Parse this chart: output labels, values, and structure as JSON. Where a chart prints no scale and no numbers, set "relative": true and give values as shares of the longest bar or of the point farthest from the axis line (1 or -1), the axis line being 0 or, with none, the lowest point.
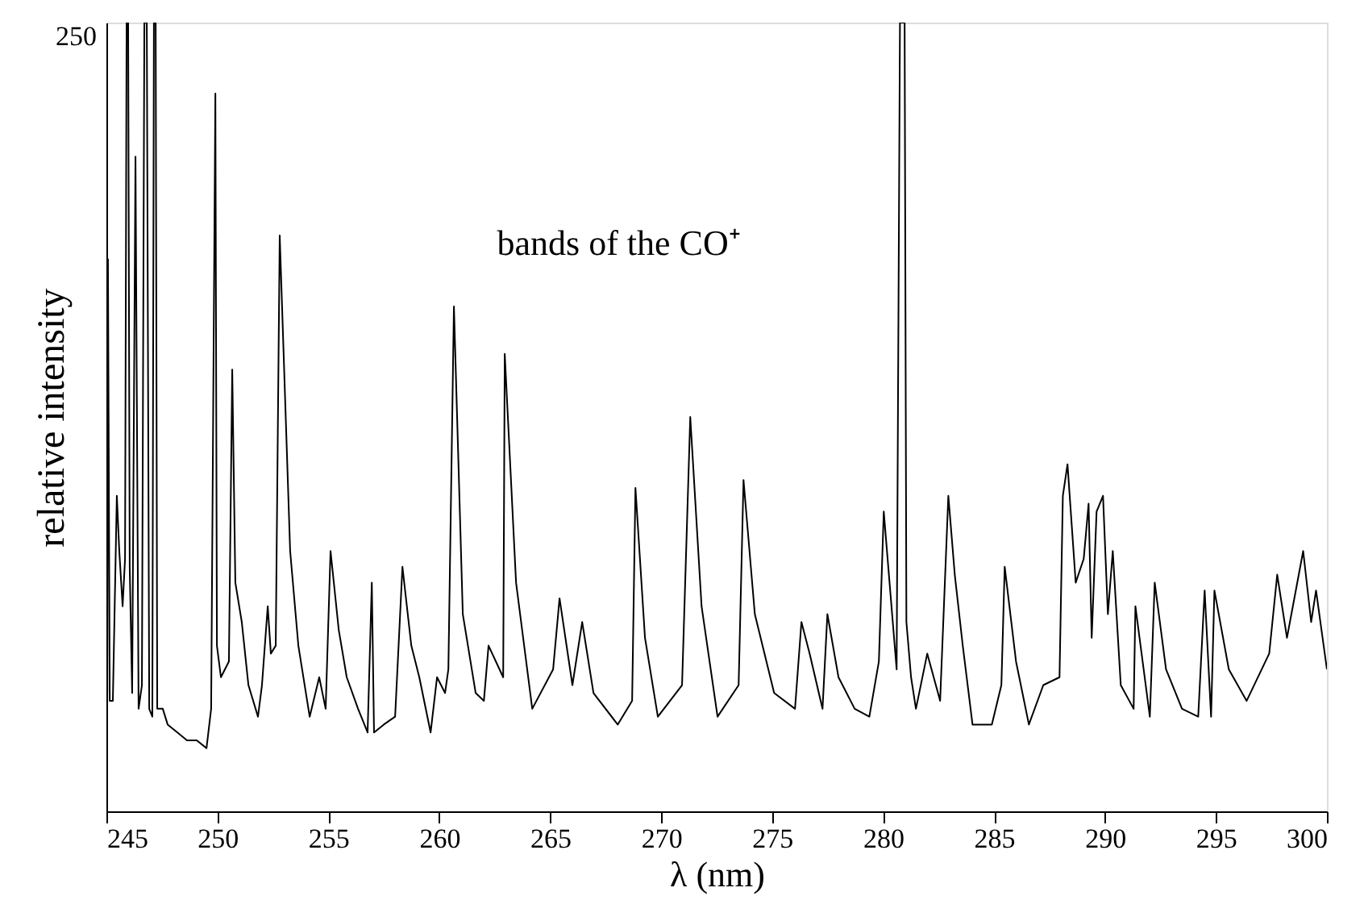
{
  "chart_data": {
    "type": "line",
    "relative": true,
    "xlabel": "λ (nm)",
    "ylabel": "relative intensity",
    "annotations": [
      "bands of the CO⁺",
      "250"
    ],
    "xlim": [
      245,
      300
    ],
    "xticks": [
      245,
      250,
      255,
      260,
      265,
      270,
      275,
      280,
      285,
      290,
      295,
      300
    ],
    "grid": false,
    "marker": "none",
    "line_style": "solid",
    "series": [
      {
        "color": "#000000",
        "x": [
          245.04,
          245.07,
          245.15,
          245.29,
          245.47,
          245.58,
          245.73,
          245.84,
          245.91,
          245.98,
          246.05,
          246.16,
          246.31,
          246.45,
          246.6,
          246.71,
          246.82,
          246.93,
          247.07,
          247.14,
          247.22,
          247.29,
          247.54,
          247.76,
          248.2,
          248.63,
          249.07,
          249.51,
          249.72,
          249.91,
          249.98,
          250.16,
          250.52,
          250.67,
          250.81,
          251.1,
          251.4,
          251.83,
          252.01,
          252.27,
          252.41,
          252.63,
          252.81,
          253.28,
          253.65,
          254.16,
          254.59,
          254.88,
          255.1,
          255.47,
          255.83,
          256.34,
          256.77,
          256.96,
          257.06,
          257.5,
          258.01,
          258.34,
          258.74,
          259.1,
          259.61,
          259.9,
          260.26,
          260.41,
          260.66,
          261.06,
          261.64,
          262.01,
          262.22,
          262.88,
          262.95,
          263.46,
          264.19,
          265.13,
          265.42,
          266.0,
          266.44,
          266.95,
          268.04,
          268.69,
          268.84,
          269.27,
          269.85,
          270.94,
          271.31,
          271.82,
          272.54,
          273.49,
          273.71,
          274.22,
          275.09,
          276.03,
          276.32,
          276.69,
          277.27,
          277.49,
          277.99,
          278.72,
          279.38,
          279.81,
          280.03,
          280.61,
          280.76,
          280.97,
          281.05,
          281.26,
          281.48,
          281.99,
          282.57,
          282.94,
          283.23,
          283.59,
          284.03,
          284.9,
          285.33,
          285.48,
          285.99,
          286.57,
          287.22,
          287.95,
          288.1,
          288.31,
          288.68,
          289.04,
          289.26,
          289.4,
          289.62,
          289.91,
          290.13,
          290.35,
          290.71,
          291.29,
          291.37,
          292.02,
          292.24,
          292.75,
          293.47,
          294.2,
          294.49,
          294.78,
          294.93,
          295.58,
          296.38,
          297.4,
          297.76,
          298.2,
          298.93,
          299.29,
          299.51,
          300.0
        ],
        "values": [
          0.15,
          0.7,
          0.14,
          0.14,
          0.4,
          0.33,
          0.26,
          0.32,
          1.0,
          1.0,
          0.31,
          0.15,
          0.83,
          0.13,
          0.16,
          1.0,
          1.0,
          0.13,
          0.12,
          1.0,
          1.0,
          0.13,
          0.13,
          0.11,
          0.1,
          0.09,
          0.09,
          0.08,
          0.13,
          0.91,
          0.21,
          0.17,
          0.19,
          0.56,
          0.29,
          0.24,
          0.16,
          0.12,
          0.16,
          0.26,
          0.2,
          0.21,
          0.73,
          0.33,
          0.21,
          0.12,
          0.17,
          0.13,
          0.33,
          0.23,
          0.17,
          0.13,
          0.1,
          0.29,
          0.1,
          0.11,
          0.12,
          0.31,
          0.21,
          0.17,
          0.1,
          0.17,
          0.15,
          0.18,
          0.64,
          0.25,
          0.15,
          0.14,
          0.21,
          0.17,
          0.58,
          0.29,
          0.13,
          0.18,
          0.27,
          0.16,
          0.24,
          0.15,
          0.11,
          0.14,
          0.41,
          0.22,
          0.12,
          0.16,
          0.5,
          0.26,
          0.12,
          0.16,
          0.42,
          0.25,
          0.15,
          0.13,
          0.24,
          0.2,
          0.13,
          0.25,
          0.17,
          0.13,
          0.12,
          0.19,
          0.38,
          0.18,
          1.0,
          1.0,
          0.24,
          0.17,
          0.13,
          0.2,
          0.14,
          0.4,
          0.3,
          0.21,
          0.11,
          0.11,
          0.16,
          0.31,
          0.19,
          0.11,
          0.16,
          0.17,
          0.4,
          0.44,
          0.29,
          0.32,
          0.39,
          0.22,
          0.38,
          0.4,
          0.25,
          0.33,
          0.16,
          0.13,
          0.26,
          0.12,
          0.29,
          0.18,
          0.13,
          0.12,
          0.28,
          0.12,
          0.28,
          0.18,
          0.14,
          0.2,
          0.3,
          0.22,
          0.33,
          0.24,
          0.28,
          0.18
        ]
      }
    ]
  }
}
